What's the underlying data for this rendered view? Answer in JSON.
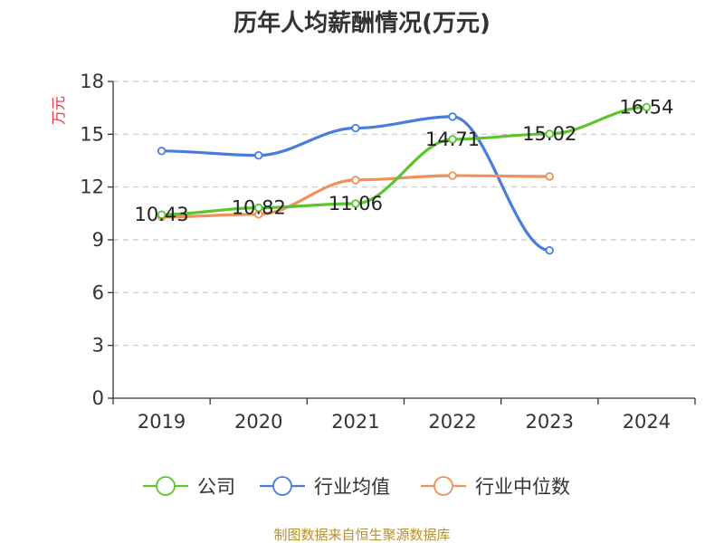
{
  "chart_data": {
    "type": "line",
    "title": "历年人均薪酬情况(万元)",
    "ylabel": "万元",
    "xlabel": "",
    "categories": [
      "2019",
      "2020",
      "2021",
      "2022",
      "2023",
      "2024"
    ],
    "ylim": [
      0,
      18
    ],
    "yticks": [
      0,
      3,
      6,
      9,
      12,
      15,
      18
    ],
    "grid": true,
    "legend_position": "bottom",
    "series": [
      {
        "name": "公司",
        "color": "#5cc52b",
        "values": [
          10.43,
          10.82,
          11.06,
          14.71,
          15.02,
          16.54
        ],
        "labels": [
          "10.43",
          "10.82",
          "11.06",
          "14.71",
          "15.02",
          "16.54"
        ]
      },
      {
        "name": "行业均值",
        "color": "#4a7ddb",
        "values": [
          14.05,
          13.8,
          15.35,
          16.0,
          8.4,
          null
        ]
      },
      {
        "name": "行业中位数",
        "color": "#f0905a",
        "values": [
          10.3,
          10.45,
          12.4,
          12.65,
          12.6,
          null
        ]
      }
    ],
    "source": "制图数据来自恒生聚源数据库"
  }
}
